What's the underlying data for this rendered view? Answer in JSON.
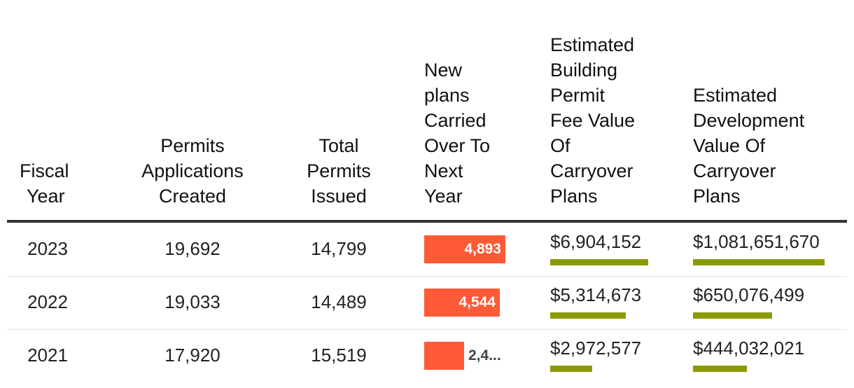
{
  "chart_data": {
    "type": "table",
    "columns": [
      "Fiscal Year",
      "Permits Applications Created",
      "Total Permits Issued",
      "New plans Carried Over To Next Year",
      "Estimated Building Permit Fee Value Of Carryover Plans",
      "Estimated Development Value Of Carryover Plans"
    ],
    "header_lines": {
      "fiscal_year": [
        "Fiscal",
        "Year"
      ],
      "permits_created": [
        "Permits",
        "Applications",
        "Created"
      ],
      "total_issued": [
        "Total",
        "Permits",
        "Issued"
      ],
      "new_plans": [
        "New",
        "plans",
        "Carried",
        "Over To",
        "Next",
        "Year"
      ],
      "fee_value": [
        "Estimated",
        "Building",
        "Permit",
        "Fee Value",
        "Of",
        "Carryover",
        "Plans"
      ],
      "dev_value": [
        "Estimated",
        "Development",
        "Value Of",
        "Carryover",
        "Plans"
      ]
    },
    "rows": [
      {
        "year": "2023",
        "permits_created": "19,692",
        "total_issued": "14,799",
        "new_plans": 4893,
        "new_plans_label": "4,893",
        "fee_value": 6904152,
        "fee_label": "$6,904,152",
        "dev_value": 1081651670,
        "dev_label": "$1,081,651,670"
      },
      {
        "year": "2022",
        "permits_created": "19,033",
        "total_issued": "14,489",
        "new_plans": 4544,
        "new_plans_label": "4,544",
        "fee_value": 5314673,
        "fee_label": "$5,314,673",
        "dev_value": 650076499,
        "dev_label": "$650,076,499"
      },
      {
        "year": "2021",
        "permits_created": "17,920",
        "total_issued": "15,519",
        "new_plans": 2400,
        "new_plans_label": "2,4...",
        "fee_value": 2972577,
        "fee_label": "$2,972,577",
        "dev_value": 444032021,
        "dev_label": "$444,032,021"
      }
    ],
    "scales": {
      "new_plans_max": 4893,
      "fee_max": 6904152,
      "dev_max": 1081651670
    }
  },
  "colors": {
    "red_bar": "#ff5a36",
    "green_bar": "#8a9a00",
    "bar_label_inside": "#ffffff",
    "bar_label_outside": "#444444"
  }
}
